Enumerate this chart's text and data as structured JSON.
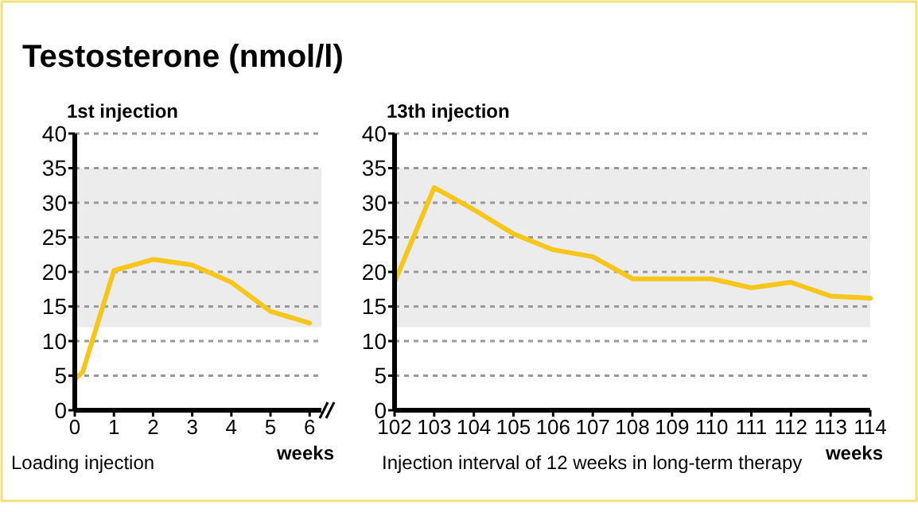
{
  "chart_data": [
    {
      "type": "line",
      "title": "Testosterone (nmol/l)",
      "subtitle": "1st injection",
      "xlabel": "weeks",
      "annotations": [
        "Loading injection"
      ],
      "series": [
        {
          "color": "#f6c61a",
          "x": [
            0,
            0.2,
            1,
            2,
            3,
            4,
            5,
            6
          ],
          "values": [
            4.5,
            5.5,
            20.2,
            21.8,
            21,
            18.5,
            14.3,
            12.6
          ]
        }
      ],
      "xlim": [
        0,
        6.3
      ],
      "xticks": [
        0,
        1,
        2,
        3,
        4,
        5,
        6
      ],
      "ylim": [
        0,
        40
      ],
      "yticks": [
        0,
        5,
        10,
        15,
        20,
        25,
        30,
        35,
        40
      ],
      "bands": [
        {
          "axis": "y",
          "from": 12,
          "to": 35,
          "color": "#ececec"
        }
      ],
      "grid": "y",
      "line_style": "solid",
      "marker": "none"
    },
    {
      "type": "line",
      "subtitle": "13th injection",
      "xlabel": "weeks",
      "annotations": [
        "Injection interval of 12 weeks in long-term therapy"
      ],
      "series": [
        {
          "color": "#f6c61a",
          "x": [
            102,
            103,
            104,
            105,
            106,
            107,
            108,
            109,
            110,
            111,
            112,
            113,
            114
          ],
          "values": [
            18.5,
            32.2,
            29,
            25.5,
            23.2,
            22.2,
            19,
            19,
            19,
            17.7,
            18.5,
            16.5,
            16.2
          ]
        }
      ],
      "xlim": [
        102,
        114
      ],
      "xticks": [
        102,
        103,
        104,
        105,
        106,
        107,
        108,
        109,
        110,
        111,
        112,
        113,
        114
      ],
      "ylim": [
        0,
        40
      ],
      "yticks": [
        0,
        5,
        10,
        15,
        20,
        25,
        30,
        35,
        40
      ],
      "bands": [
        {
          "axis": "y",
          "from": 12,
          "to": 35,
          "color": "#ececec"
        }
      ],
      "grid": "y",
      "line_style": "solid",
      "marker": "none"
    }
  ]
}
